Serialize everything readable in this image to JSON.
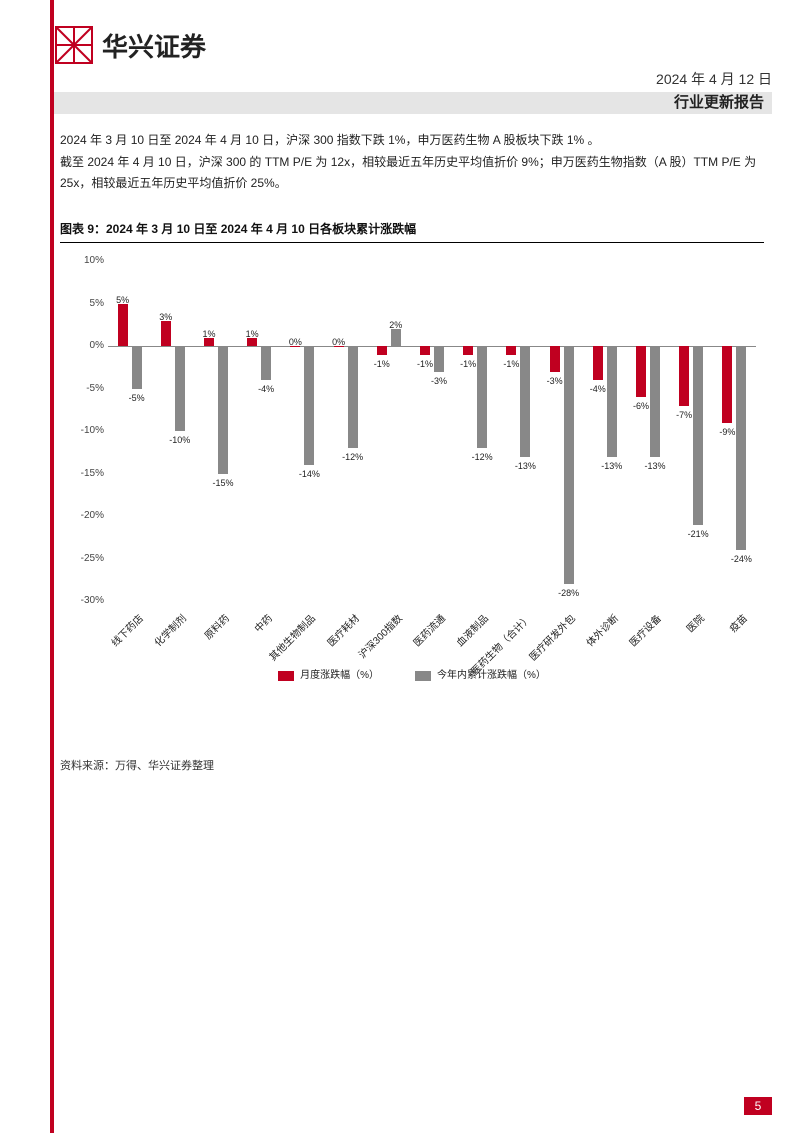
{
  "header": {
    "brand_name": "华兴证券",
    "logo_color": "#c00020",
    "date": "2024 年 4 月 12 日",
    "subtitle": "行业更新报告"
  },
  "paragraphs": [
    "2024 年 3 月 10 日至 2024 年 4 月 10 日，沪深 300 指数下跌 1%，申万医药生物 A 股板块下跌 1% 。",
    "截至 2024 年 4 月 10 日，沪深 300 的 TTM P/E 为 12x，相较最近五年历史平均值折价 9%；申万医药生物指数（A 股）TTM P/E 为 25x，相较最近五年历史平均值折价 25%。"
  ],
  "chart": {
    "title": "图表 9：2024 年 3 月 10 日至 2024 年 4 月 10 日各板块累计涨跌幅",
    "type": "bar",
    "ylim": [
      -30,
      10
    ],
    "ytick_step": 5,
    "yticks": [
      10,
      5,
      0,
      -5,
      -10,
      -15,
      -20,
      -25,
      -30
    ],
    "axis_color": "#888888",
    "label_fontsize": 10,
    "series": [
      {
        "name": "月度涨跌幅（%）",
        "color": "#c00020"
      },
      {
        "name": "今年内累计涨跌幅（%）",
        "color": "#888888"
      }
    ],
    "categories": [
      "线下药店",
      "化学制剂",
      "原料药",
      "中药",
      "其他生物制品",
      "医疗耗材",
      "沪深300指数",
      "医药流通",
      "血液制品",
      "医药生物（合计）",
      "医疗研发外包",
      "体外诊断",
      "医疗设备",
      "医院",
      "疫苗"
    ],
    "monthly": [
      5,
      3,
      1,
      1,
      0,
      0,
      -1,
      -1,
      -1,
      -1,
      -3,
      -4,
      -6,
      -7,
      -9
    ],
    "ytd": [
      -5,
      -10,
      -15,
      -4,
      -14,
      -12,
      2,
      -3,
      -12,
      -13,
      -28,
      -13,
      -13,
      -21,
      -24
    ],
    "monthly_labels": [
      "5%",
      "3%",
      "1%",
      "1%",
      "0%",
      "0%",
      "-1%",
      "-1%",
      "-1%",
      "-1%",
      "-3%",
      "-4%",
      "-6%",
      "-7%",
      "-9%"
    ],
    "ytd_labels": [
      "-5%",
      "-10%",
      "-15%",
      "-4%",
      "-14%",
      "-12%",
      "2%",
      "-3%",
      "-12%",
      "-13%",
      "-28%",
      "-13%",
      "-13%",
      "-21%",
      "-24%"
    ]
  },
  "source": "资料来源：万得、华兴证券整理",
  "page_number": "5",
  "colors": {
    "accent": "#c00020",
    "grid": "#e5e5e5",
    "text": "#222222"
  }
}
